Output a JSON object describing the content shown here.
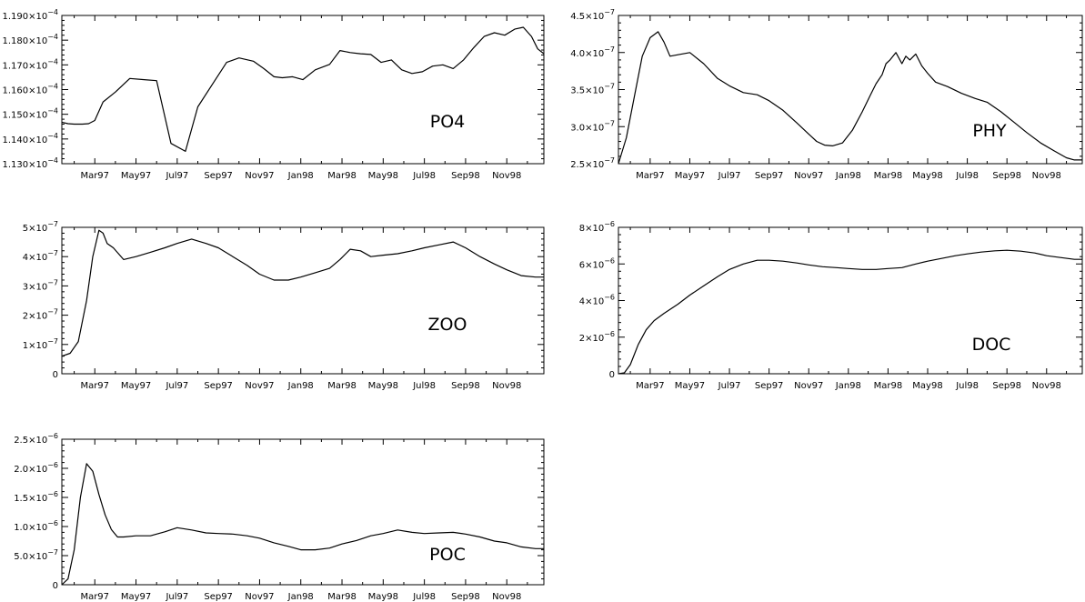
{
  "chart_data": [
    {
      "type": "line",
      "label": "PO4",
      "x_tick_labels": [
        "Mar97",
        "May97",
        "Jul97",
        "Sep97",
        "Nov97",
        "Jan98",
        "Mar98",
        "May98",
        "Jul98",
        "Sep98",
        "Nov98"
      ],
      "y_ticks": [
        {
          "value": 0.000113,
          "mant": "1.130×10",
          "exp": "−4"
        },
        {
          "value": 0.000114,
          "mant": "1.140×10",
          "exp": "−4"
        },
        {
          "value": 0.000115,
          "mant": "1.150×10",
          "exp": "−4"
        },
        {
          "value": 0.000116,
          "mant": "1.160×10",
          "exp": "−4"
        },
        {
          "value": 0.000117,
          "mant": "1.170×10",
          "exp": "−4"
        },
        {
          "value": 0.000118,
          "mant": "1.180×10",
          "exp": "−4"
        },
        {
          "value": 0.000119,
          "mant": "1.190×10",
          "exp": "−4"
        }
      ],
      "ylim": [
        0.000113,
        0.000119
      ],
      "xlim": [
        0,
        23.4
      ],
      "grid": false,
      "series": [
        {
          "x": [
            0,
            0.3,
            0.6,
            1.0,
            1.3,
            1.6,
            2.0,
            2.6,
            3.3,
            4.0,
            4.6,
            5.3,
            6.0,
            6.6,
            7.3,
            8.0,
            8.6,
            9.3,
            9.8,
            10.3,
            10.7,
            11.2,
            11.7,
            12.3,
            13.0,
            13.5,
            14.0,
            14.5,
            15.0,
            15.5,
            16.0,
            16.5,
            17.0,
            17.5,
            18.0,
            18.5,
            19.0,
            19.5,
            20.0,
            20.5,
            21.0,
            21.5,
            22.0,
            22.4,
            22.8,
            23.1,
            23.4
          ],
          "y": [
            0.00011468,
            0.00011462,
            0.0001146,
            0.0001146,
            0.00011462,
            0.00011475,
            0.0001155,
            0.0001159,
            0.00011645,
            0.0001164,
            0.00011636,
            0.00011382,
            0.0001135,
            0.0001153,
            0.0001162,
            0.0001171,
            0.00011728,
            0.00011715,
            0.00011685,
            0.00011652,
            0.00011648,
            0.00011652,
            0.0001164,
            0.0001168,
            0.00011702,
            0.00011758,
            0.0001175,
            0.00011745,
            0.00011742,
            0.0001171,
            0.0001172,
            0.0001168,
            0.00011665,
            0.00011672,
            0.00011695,
            0.000117,
            0.00011685,
            0.0001172,
            0.0001177,
            0.00011815,
            0.0001183,
            0.0001182,
            0.00011845,
            0.00011852,
            0.00011815,
            0.00011765,
            0.00011745
          ]
        }
      ]
    },
    {
      "type": "line",
      "label": "PHY",
      "x_tick_labels": [
        "Mar97",
        "May97",
        "Jul97",
        "Sep97",
        "Nov97",
        "Jan98",
        "Mar98",
        "May98",
        "Jul98",
        "Sep98",
        "Nov98"
      ],
      "y_ticks": [
        {
          "value": 2.5e-07,
          "mant": "2.5×10",
          "exp": "−7"
        },
        {
          "value": 3e-07,
          "mant": "3.0×10",
          "exp": "−7"
        },
        {
          "value": 3.5e-07,
          "mant": "3.5×10",
          "exp": "−7"
        },
        {
          "value": 4e-07,
          "mant": "4.0×10",
          "exp": "−7"
        },
        {
          "value": 4.5e-07,
          "mant": "4.5×10",
          "exp": "−7"
        }
      ],
      "ylim": [
        2.5e-07,
        4.5e-07
      ],
      "xlim": [
        0,
        23.4
      ],
      "grid": false,
      "series": [
        {
          "x": [
            0,
            0.4,
            0.8,
            1.2,
            1.6,
            2.0,
            2.3,
            2.6,
            3.0,
            3.6,
            4.3,
            5.0,
            5.6,
            6.3,
            7.0,
            7.6,
            8.3,
            9.0,
            9.6,
            10.0,
            10.4,
            10.8,
            11.3,
            11.8,
            12.3,
            12.7,
            13.0,
            13.3,
            13.5,
            13.7,
            14.0,
            14.3,
            14.5,
            14.7,
            15.0,
            15.3,
            15.6,
            16.0,
            16.6,
            17.3,
            18.0,
            18.6,
            19.3,
            20.0,
            20.6,
            21.3,
            22.0,
            22.6,
            23.0,
            23.4
          ],
          "y": [
            2.5e-07,
            2.85e-07,
            3.4e-07,
            3.95e-07,
            4.2e-07,
            4.28e-07,
            4.14e-07,
            3.95e-07,
            3.97e-07,
            4e-07,
            3.85e-07,
            3.65e-07,
            3.55e-07,
            3.46e-07,
            3.43e-07,
            3.35e-07,
            3.22e-07,
            3.05e-07,
            2.9e-07,
            2.8e-07,
            2.75e-07,
            2.74e-07,
            2.78e-07,
            2.95e-07,
            3.2e-07,
            3.42e-07,
            3.58e-07,
            3.7e-07,
            3.85e-07,
            3.9e-07,
            4e-07,
            3.85e-07,
            3.95e-07,
            3.9e-07,
            3.98e-07,
            3.82e-07,
            3.72e-07,
            3.6e-07,
            3.54e-07,
            3.45e-07,
            3.38e-07,
            3.33e-07,
            3.2e-07,
            3.05e-07,
            2.92e-07,
            2.78e-07,
            2.67e-07,
            2.58e-07,
            2.55e-07,
            2.55e-07
          ]
        }
      ]
    },
    {
      "type": "line",
      "label": "ZOO",
      "x_tick_labels": [
        "Mar97",
        "May97",
        "Jul97",
        "Sep97",
        "Nov97",
        "Jan98",
        "Mar98",
        "May98",
        "Jul98",
        "Sep98",
        "Nov98"
      ],
      "y_ticks": [
        {
          "value": 0,
          "mant": "0",
          "exp": ""
        },
        {
          "value": 1e-07,
          "mant": "1×10",
          "exp": "−7"
        },
        {
          "value": 2e-07,
          "mant": "2×10",
          "exp": "−7"
        },
        {
          "value": 3e-07,
          "mant": "3×10",
          "exp": "−7"
        },
        {
          "value": 4e-07,
          "mant": "4×10",
          "exp": "−7"
        },
        {
          "value": 5e-07,
          "mant": "5×10",
          "exp": "−7"
        }
      ],
      "ylim": [
        0,
        5e-07
      ],
      "xlim": [
        0,
        23.4
      ],
      "grid": false,
      "series": [
        {
          "x": [
            0,
            0.4,
            0.8,
            1.2,
            1.5,
            1.8,
            2.0,
            2.2,
            2.5,
            3.0,
            3.6,
            4.3,
            5.0,
            5.6,
            6.3,
            7.0,
            7.6,
            8.3,
            9.0,
            9.6,
            10.3,
            11.0,
            11.6,
            12.3,
            13.0,
            13.5,
            14.0,
            14.5,
            15.0,
            15.6,
            16.3,
            17.0,
            17.6,
            18.3,
            19.0,
            19.6,
            20.3,
            21.0,
            21.6,
            22.3,
            23.0,
            23.4
          ],
          "y": [
            6e-08,
            7e-08,
            1.1e-07,
            2.5e-07,
            4e-07,
            4.9e-07,
            4.8e-07,
            4.45e-07,
            4.3e-07,
            3.9e-07,
            4e-07,
            4.15e-07,
            4.3e-07,
            4.45e-07,
            4.6e-07,
            4.45e-07,
            4.3e-07,
            4e-07,
            3.7e-07,
            3.4e-07,
            3.2e-07,
            3.2e-07,
            3.3e-07,
            3.45e-07,
            3.6e-07,
            3.9e-07,
            4.25e-07,
            4.2e-07,
            4e-07,
            4.05e-07,
            4.1e-07,
            4.2e-07,
            4.3e-07,
            4.4e-07,
            4.5e-07,
            4.3e-07,
            4e-07,
            3.75e-07,
            3.55e-07,
            3.35e-07,
            3.3e-07,
            3.3e-07
          ]
        }
      ]
    },
    {
      "type": "line",
      "label": "DOC",
      "x_tick_labels": [
        "Mar97",
        "May97",
        "Jul97",
        "Sep97",
        "Nov97",
        "Jan98",
        "Mar98",
        "May98",
        "Jul98",
        "Sep98",
        "Nov98"
      ],
      "y_ticks": [
        {
          "value": 0,
          "mant": "0",
          "exp": ""
        },
        {
          "value": 2e-06,
          "mant": "2×10",
          "exp": "−6"
        },
        {
          "value": 4e-06,
          "mant": "4×10",
          "exp": "−6"
        },
        {
          "value": 6e-06,
          "mant": "6×10",
          "exp": "−6"
        },
        {
          "value": 8e-06,
          "mant": "8×10",
          "exp": "−6"
        }
      ],
      "ylim": [
        0,
        8e-06
      ],
      "xlim": [
        0,
        23.4
      ],
      "grid": false,
      "series": [
        {
          "x": [
            0,
            0.3,
            0.6,
            1.0,
            1.4,
            1.8,
            2.3,
            3.0,
            3.6,
            4.3,
            5.0,
            5.6,
            6.3,
            7.0,
            7.6,
            8.3,
            9.0,
            9.6,
            10.3,
            11.0,
            11.6,
            12.3,
            13.0,
            13.6,
            14.3,
            15.0,
            15.6,
            16.3,
            17.0,
            17.6,
            18.3,
            19.0,
            19.6,
            20.3,
            21.0,
            21.6,
            22.3,
            23.0,
            23.4
          ],
          "y": [
            0,
            5e-08,
            5e-07,
            1.6e-06,
            2.4e-06,
            2.9e-06,
            3.3e-06,
            3.8e-06,
            4.3e-06,
            4.8e-06,
            5.3e-06,
            5.7e-06,
            6e-06,
            6.2e-06,
            6.2e-06,
            6.15e-06,
            6.05e-06,
            5.95e-06,
            5.85e-06,
            5.8e-06,
            5.75e-06,
            5.7e-06,
            5.7e-06,
            5.75e-06,
            5.8e-06,
            6e-06,
            6.15e-06,
            6.3e-06,
            6.45e-06,
            6.55e-06,
            6.65e-06,
            6.72e-06,
            6.75e-06,
            6.7e-06,
            6.6e-06,
            6.45e-06,
            6.35e-06,
            6.25e-06,
            6.25e-06
          ]
        }
      ]
    },
    {
      "type": "line",
      "label": "POC",
      "x_tick_labels": [
        "Mar97",
        "May97",
        "Jul97",
        "Sep97",
        "Nov97",
        "Jan98",
        "Mar98",
        "May98",
        "Jul98",
        "Sep98",
        "Nov98"
      ],
      "y_ticks": [
        {
          "value": 0,
          "mant": "0",
          "exp": ""
        },
        {
          "value": 5e-07,
          "mant": "5.0×10",
          "exp": "−7"
        },
        {
          "value": 1e-06,
          "mant": "1.0×10",
          "exp": "−6"
        },
        {
          "value": 1.5e-06,
          "mant": "1.5×10",
          "exp": "−6"
        },
        {
          "value": 2e-06,
          "mant": "2.0×10",
          "exp": "−6"
        },
        {
          "value": 2.5e-06,
          "mant": "2.5×10",
          "exp": "−6"
        }
      ],
      "ylim": [
        0,
        2.5e-06
      ],
      "xlim": [
        0,
        23.4
      ],
      "grid": false,
      "series": [
        {
          "x": [
            0,
            0.3,
            0.6,
            0.9,
            1.2,
            1.5,
            1.8,
            2.1,
            2.4,
            2.7,
            3.0,
            3.6,
            4.3,
            5.0,
            5.6,
            6.3,
            7.0,
            7.6,
            8.3,
            9.0,
            9.6,
            10.3,
            11.0,
            11.6,
            12.3,
            13.0,
            13.6,
            14.3,
            15.0,
            15.6,
            16.3,
            17.0,
            17.6,
            18.3,
            19.0,
            19.6,
            20.3,
            21.0,
            21.6,
            22.3,
            23.0,
            23.4
          ],
          "y": [
            0,
            1e-07,
            6e-07,
            1.5e-06,
            2.08e-06,
            1.95e-06,
            1.55e-06,
            1.2e-06,
            9.5e-07,
            8.2e-07,
            8.2e-07,
            8.4e-07,
            8.4e-07,
            9.1e-07,
            9.8e-07,
            9.4e-07,
            8.9e-07,
            8.8e-07,
            8.7e-07,
            8.4e-07,
            8e-07,
            7.2e-07,
            6.6e-07,
            6e-07,
            6e-07,
            6.3e-07,
            7e-07,
            7.6e-07,
            8.4e-07,
            8.8e-07,
            9.4e-07,
            9e-07,
            8.8e-07,
            8.9e-07,
            9e-07,
            8.7e-07,
            8.2e-07,
            7.5e-07,
            7.2e-07,
            6.5e-07,
            6.2e-07,
            6.2e-07
          ]
        }
      ]
    }
  ]
}
